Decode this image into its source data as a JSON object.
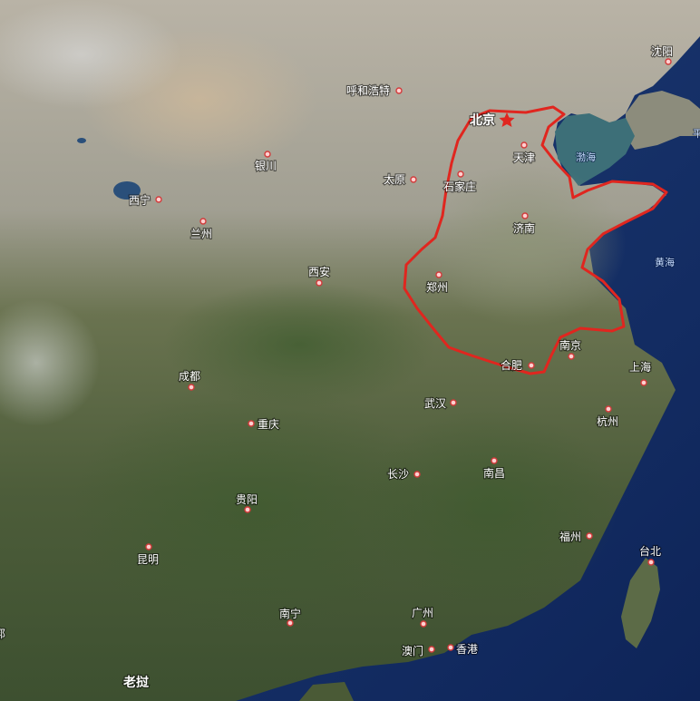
{
  "map": {
    "cities": [
      {
        "id": "shenyang",
        "name": "沈阳"
      },
      {
        "id": "huhehaote",
        "name": "呼和浩特"
      },
      {
        "id": "beijing",
        "name": "北京"
      },
      {
        "id": "yinchuan",
        "name": "银川"
      },
      {
        "id": "tianjin",
        "name": "天津"
      },
      {
        "id": "taiyuan",
        "name": "太原"
      },
      {
        "id": "shijiazhuang",
        "name": "石家庄"
      },
      {
        "id": "xining",
        "name": "西宁"
      },
      {
        "id": "lanzhou",
        "name": "兰州"
      },
      {
        "id": "jinan",
        "name": "济南"
      },
      {
        "id": "xian",
        "name": "西安"
      },
      {
        "id": "zhengzhou",
        "name": "郑州"
      },
      {
        "id": "nanjing",
        "name": "南京"
      },
      {
        "id": "hefei",
        "name": "合肥"
      },
      {
        "id": "shanghai",
        "name": "上海"
      },
      {
        "id": "chengdu",
        "name": "成都"
      },
      {
        "id": "wuhan",
        "name": "武汉"
      },
      {
        "id": "chongqing",
        "name": "重庆"
      },
      {
        "id": "hangzhou",
        "name": "杭州"
      },
      {
        "id": "changsha",
        "name": "长沙"
      },
      {
        "id": "nanchang",
        "name": "南昌"
      },
      {
        "id": "guiyang",
        "name": "贵阳"
      },
      {
        "id": "fuzhou",
        "name": "福州"
      },
      {
        "id": "taibei",
        "name": "台北"
      },
      {
        "id": "kunming",
        "name": "昆明"
      },
      {
        "id": "nanning",
        "name": "南宁"
      },
      {
        "id": "guangzhou",
        "name": "广州"
      },
      {
        "id": "aomen",
        "name": "澳门"
      },
      {
        "id": "xianggang",
        "name": "香港"
      },
      {
        "id": "laowo",
        "name": "老挝"
      }
    ],
    "seas": [
      {
        "id": "bohai",
        "name": "渤海"
      },
      {
        "id": "huanghai",
        "name": "黄海"
      }
    ],
    "edge_labels": [
      {
        "id": "left-edge",
        "name": "郛"
      },
      {
        "id": "right-edge",
        "name": "平"
      }
    ],
    "colors": {
      "outline": "#e0261f",
      "capital_star": "#e0261f",
      "ocean": "#14306a"
    }
  }
}
